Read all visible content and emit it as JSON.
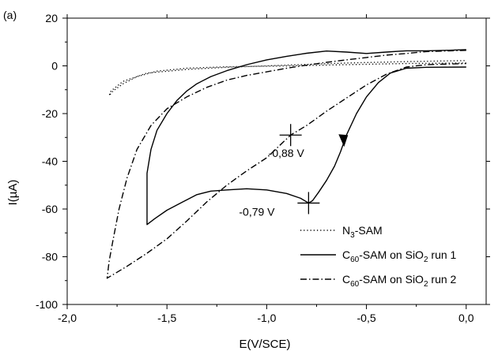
{
  "chart_data": {
    "type": "line",
    "panel_label": "(a)",
    "xlabel": "E(V/SCE)",
    "ylabel": "I(µA)",
    "xlim": [
      -2.0,
      0.1
    ],
    "ylim": [
      -100,
      20
    ],
    "x_ticks": [
      -2.0,
      -1.5,
      -1.0,
      -0.5,
      0.0
    ],
    "x_tick_labels": [
      "-2,0",
      "-1,5",
      "-1,0",
      "-0,5",
      "0,0"
    ],
    "y_ticks": [
      20,
      0,
      -20,
      -40,
      -60,
      -80,
      -100
    ],
    "y_tick_labels": [
      "20",
      "0",
      "-20",
      "-40",
      "-60",
      "-80",
      "-100"
    ],
    "grid": false,
    "legend_position": "bottom-right",
    "series": [
      {
        "name_main": "N",
        "name_sub": "3",
        "name_rest": "-SAM",
        "style": "dotted",
        "points": [
          [
            0.0,
            1.2
          ],
          [
            -0.3,
            1.0
          ],
          [
            -0.6,
            0.5
          ],
          [
            -0.9,
            0.0
          ],
          [
            -1.2,
            -0.4
          ],
          [
            -1.4,
            -1.0
          ],
          [
            -1.55,
            -2.2
          ],
          [
            -1.65,
            -4.5
          ],
          [
            -1.72,
            -7.5
          ],
          [
            -1.77,
            -10.5
          ],
          [
            -1.79,
            -12.5
          ],
          [
            -1.78,
            -10.5
          ],
          [
            -1.72,
            -6.5
          ],
          [
            -1.6,
            -3.0
          ],
          [
            -1.4,
            -1.5
          ],
          [
            -1.2,
            -0.6
          ],
          [
            -0.9,
            0.3
          ],
          [
            -0.6,
            1.2
          ],
          [
            -0.3,
            1.8
          ],
          [
            0.0,
            2.2
          ]
        ]
      },
      {
        "name_main": "C",
        "name_sub": "60",
        "name_rest": "-SAM on SiO",
        "name_sub2": "2",
        "name_tail": " run 1",
        "style": "solid",
        "points": [
          [
            0.0,
            -0.5
          ],
          [
            -0.2,
            -0.6
          ],
          [
            -0.3,
            -1.0
          ],
          [
            -0.38,
            -3.0
          ],
          [
            -0.44,
            -7.0
          ],
          [
            -0.5,
            -13.0
          ],
          [
            -0.55,
            -20.0
          ],
          [
            -0.6,
            -29.0
          ],
          [
            -0.63,
            -36.0
          ],
          [
            -0.66,
            -42.0
          ],
          [
            -0.7,
            -48.0
          ],
          [
            -0.74,
            -53.0
          ],
          [
            -0.77,
            -56.5
          ],
          [
            -0.79,
            -57.5
          ],
          [
            -0.83,
            -55.5
          ],
          [
            -0.9,
            -53.5
          ],
          [
            -1.0,
            -52.0
          ],
          [
            -1.1,
            -51.5
          ],
          [
            -1.2,
            -52.0
          ],
          [
            -1.28,
            -52.5
          ],
          [
            -1.35,
            -54.0
          ],
          [
            -1.42,
            -57.0
          ],
          [
            -1.5,
            -60.5
          ],
          [
            -1.56,
            -64.0
          ],
          [
            -1.6,
            -66.5
          ],
          [
            -1.6,
            -45.0
          ],
          [
            -1.58,
            -35.0
          ],
          [
            -1.55,
            -27.0
          ],
          [
            -1.5,
            -20.0
          ],
          [
            -1.45,
            -14.5
          ],
          [
            -1.4,
            -10.5
          ],
          [
            -1.35,
            -7.5
          ],
          [
            -1.28,
            -4.5
          ],
          [
            -1.2,
            -2.0
          ],
          [
            -1.1,
            0.5
          ],
          [
            -1.0,
            2.5
          ],
          [
            -0.9,
            4.0
          ],
          [
            -0.8,
            5.3
          ],
          [
            -0.7,
            6.2
          ],
          [
            -0.6,
            5.8
          ],
          [
            -0.5,
            5.2
          ],
          [
            -0.4,
            5.8
          ],
          [
            -0.3,
            6.3
          ],
          [
            -0.2,
            6.3
          ],
          [
            -0.1,
            6.5
          ],
          [
            0.0,
            6.8
          ]
        ]
      },
      {
        "name_main": "C",
        "name_sub": "60",
        "name_rest": "-SAM on SiO",
        "name_sub2": "2",
        "name_tail": " run 2",
        "style": "dashdot",
        "points": [
          [
            0.0,
            6.5
          ],
          [
            -0.2,
            6.0
          ],
          [
            -0.3,
            5.2
          ],
          [
            -0.4,
            4.5
          ],
          [
            -0.5,
            3.5
          ],
          [
            -0.6,
            2.5
          ],
          [
            -0.7,
            1.5
          ],
          [
            -0.8,
            0.3
          ],
          [
            -0.9,
            -1.0
          ],
          [
            -1.0,
            -2.5
          ],
          [
            -1.1,
            -4.0
          ],
          [
            -1.2,
            -6.0
          ],
          [
            -1.3,
            -9.0
          ],
          [
            -1.4,
            -13.0
          ],
          [
            -1.5,
            -18.0
          ],
          [
            -1.58,
            -25.0
          ],
          [
            -1.65,
            -35.0
          ],
          [
            -1.7,
            -47.0
          ],
          [
            -1.74,
            -60.0
          ],
          [
            -1.77,
            -73.0
          ],
          [
            -1.79,
            -82.0
          ],
          [
            -1.8,
            -89.0
          ],
          [
            -1.7,
            -84.0
          ],
          [
            -1.6,
            -78.5
          ],
          [
            -1.5,
            -72.5
          ],
          [
            -1.4,
            -65.0
          ],
          [
            -1.3,
            -57.0
          ],
          [
            -1.2,
            -50.0
          ],
          [
            -1.1,
            -44.0
          ],
          [
            -1.0,
            -38.5
          ],
          [
            -0.88,
            -29.0
          ],
          [
            -0.8,
            -25.0
          ],
          [
            -0.7,
            -19.0
          ],
          [
            -0.6,
            -13.5
          ],
          [
            -0.5,
            -8.0
          ],
          [
            -0.4,
            -3.5
          ],
          [
            -0.3,
            -0.5
          ],
          [
            -0.2,
            0.5
          ],
          [
            0.0,
            1.0
          ]
        ]
      }
    ],
    "annotations": [
      {
        "text": "-0,88 V",
        "x": -0.88,
        "y": -29.0
      },
      {
        "text": "-0,79 V",
        "x": -0.79,
        "y": -57.5
      }
    ],
    "arrow": {
      "x": -0.62,
      "y": -32.0
    }
  }
}
